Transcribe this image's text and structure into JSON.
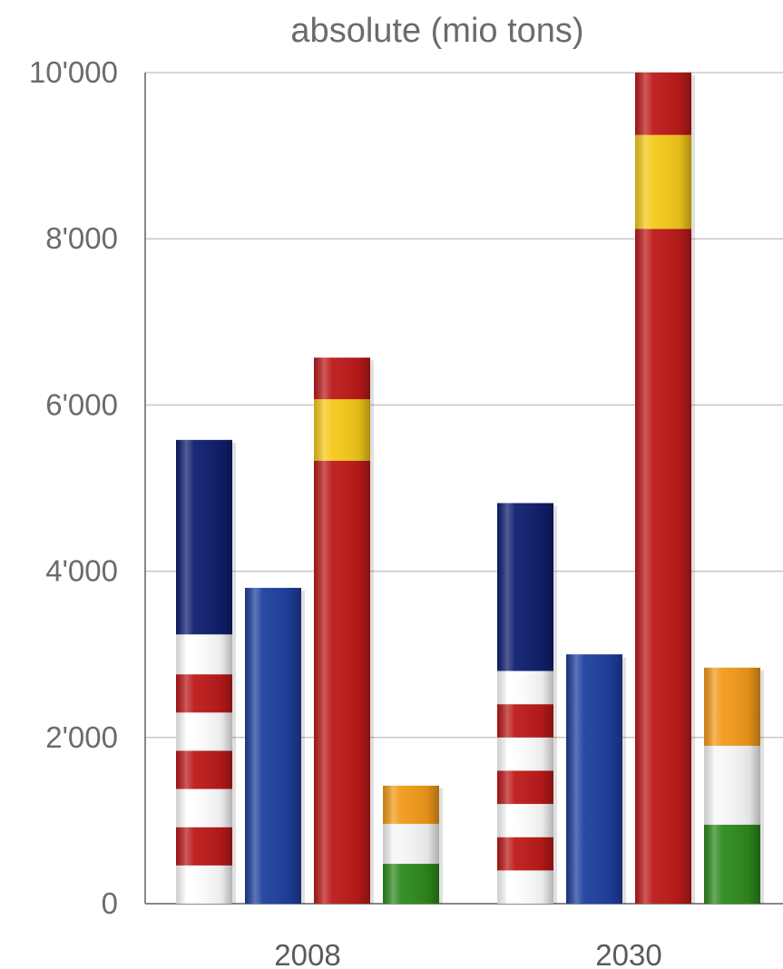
{
  "chart_data": {
    "type": "bar",
    "stacked": true,
    "title": "absolute (mio tons)",
    "xlabel": "",
    "ylabel": "",
    "ylim": [
      0,
      10000
    ],
    "yticks": [
      0,
      2000,
      4000,
      6000,
      8000,
      10000
    ],
    "ytick_labels": [
      "0",
      "2'000",
      "4'000",
      "6'000",
      "8'000",
      "10'000"
    ],
    "grid": true,
    "legend": "none",
    "categories": [
      "2008",
      "2030"
    ],
    "bar_order": [
      "us",
      "eu",
      "china",
      "india"
    ],
    "bar_icons": {
      "us": "usa-flag-pattern",
      "eu": "eu-flag-pattern",
      "china": "china-flag-pattern",
      "india": "india-flag-pattern"
    },
    "bars": [
      [
        {
          "key": "us",
          "total": 5580,
          "segments": [
            {
              "v": 460,
              "c": "#ffffff"
            },
            {
              "v": 460,
              "c": "#bd1a1a"
            },
            {
              "v": 460,
              "c": "#ffffff"
            },
            {
              "v": 460,
              "c": "#bd1a1a"
            },
            {
              "v": 460,
              "c": "#ffffff"
            },
            {
              "v": 460,
              "c": "#bd1a1a"
            },
            {
              "v": 480,
              "c": "#ffffff"
            },
            {
              "v": 2340,
              "c": "#0f1f6e"
            }
          ]
        },
        {
          "key": "eu",
          "total": 3800,
          "segments": [
            {
              "v": 3800,
              "c": "#1e3f9e"
            }
          ]
        },
        {
          "key": "china",
          "total": 6570,
          "segments": [
            {
              "v": 5330,
              "c": "#bd1a1a"
            },
            {
              "v": 740,
              "c": "#f5c91a"
            },
            {
              "v": 500,
              "c": "#bd1a1a"
            }
          ]
        },
        {
          "key": "india",
          "total": 1420,
          "segments": [
            {
              "v": 480,
              "c": "#2e8a1e"
            },
            {
              "v": 480,
              "c": "#f7f7f7"
            },
            {
              "v": 460,
              "c": "#f29a1a"
            }
          ]
        }
      ],
      [
        {
          "key": "us",
          "total": 4820,
          "segments": [
            {
              "v": 400,
              "c": "#ffffff"
            },
            {
              "v": 400,
              "c": "#bd1a1a"
            },
            {
              "v": 400,
              "c": "#ffffff"
            },
            {
              "v": 400,
              "c": "#bd1a1a"
            },
            {
              "v": 400,
              "c": "#ffffff"
            },
            {
              "v": 400,
              "c": "#bd1a1a"
            },
            {
              "v": 400,
              "c": "#ffffff"
            },
            {
              "v": 2020,
              "c": "#0f1f6e"
            }
          ]
        },
        {
          "key": "eu",
          "total": 3000,
          "segments": [
            {
              "v": 3000,
              "c": "#1e3f9e"
            }
          ]
        },
        {
          "key": "china",
          "total": 10000,
          "segments": [
            {
              "v": 8120,
              "c": "#bd1a1a"
            },
            {
              "v": 1130,
              "c": "#f5c91a"
            },
            {
              "v": 750,
              "c": "#bd1a1a"
            }
          ]
        },
        {
          "key": "india",
          "total": 2840,
          "segments": [
            {
              "v": 950,
              "c": "#2e8a1e"
            },
            {
              "v": 950,
              "c": "#f7f7f7"
            },
            {
              "v": 940,
              "c": "#f29a1a"
            }
          ]
        }
      ]
    ]
  }
}
